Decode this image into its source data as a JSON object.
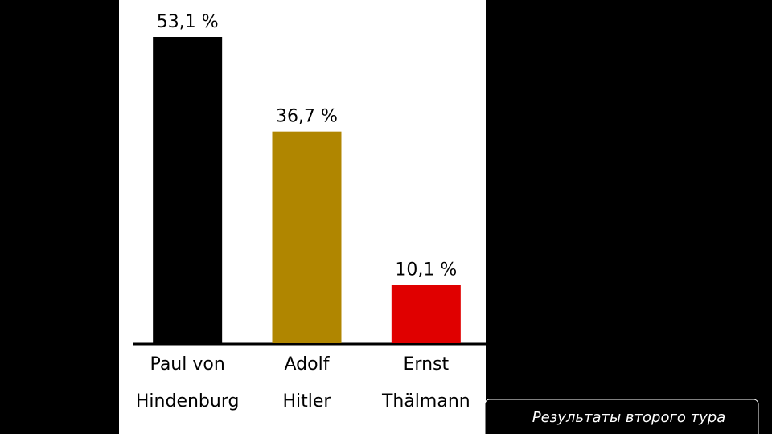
{
  "chart_data": {
    "type": "bar",
    "categories": [
      [
        "Paul von",
        "Hindenburg"
      ],
      [
        "Adolf",
        "Hitler"
      ],
      [
        "Ernst",
        "Thälmann"
      ]
    ],
    "values": [
      53.1,
      36.7,
      10.1
    ],
    "value_labels": [
      "53,1 %",
      "36,7 %",
      "10,1 %"
    ],
    "colors": [
      "#000000",
      "#b08600",
      "#e00000"
    ]
  },
  "caption": "Результаты второго тура"
}
